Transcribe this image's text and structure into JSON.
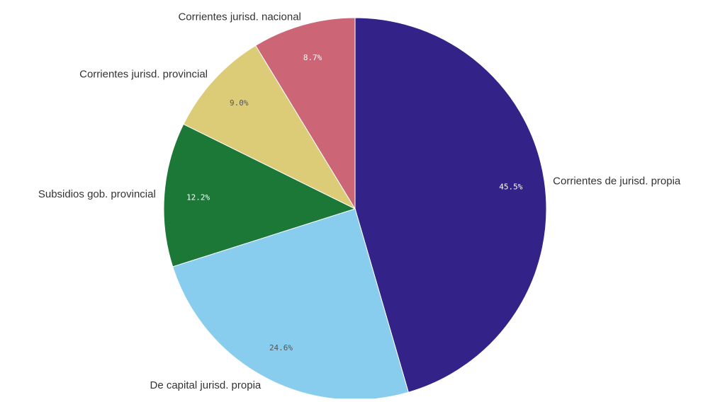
{
  "chart_data": {
    "type": "pie",
    "slices": [
      {
        "label": "Corrientes de jurisd. propia",
        "value": 45.5,
        "value_label": "45.5%",
        "color": "#332288",
        "text_color": "#ffffff"
      },
      {
        "label": "De capital jurisd. propia",
        "value": 24.6,
        "value_label": "24.6%",
        "color": "#88ccee",
        "text_color": "#555555"
      },
      {
        "label": "Subsidios gob. provincial",
        "value": 12.2,
        "value_label": "12.2%",
        "color": "#1b7837",
        "text_color": "#ffffff"
      },
      {
        "label": "Corrientes jurisd. provincial",
        "value": 9.0,
        "value_label": "9.0%",
        "color": "#ddcc77",
        "text_color": "#555555"
      },
      {
        "label": "Corrientes jurisd. nacional",
        "value": 8.7,
        "value_label": "8.7%",
        "color": "#cc6677",
        "text_color": "#ffffff"
      }
    ],
    "start_angle": "top",
    "direction": "clockwise"
  }
}
